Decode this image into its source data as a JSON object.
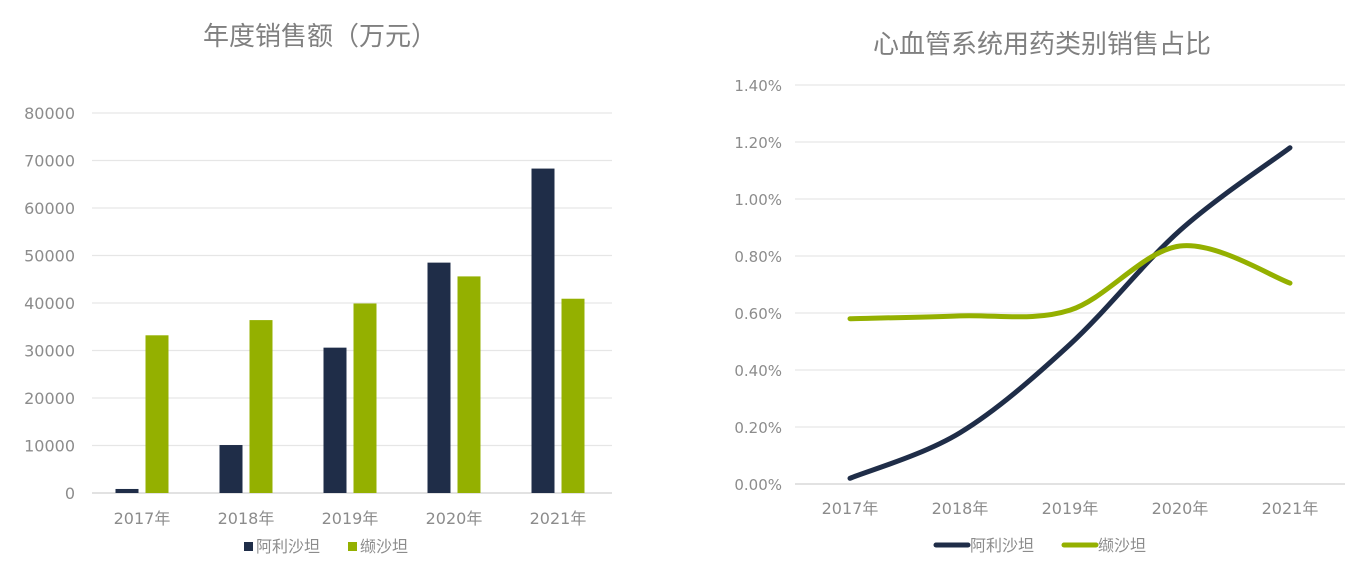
{
  "chart_data": [
    {
      "type": "bar",
      "title": "年度销售额（万元）",
      "categories": [
        "2017年",
        "2018年",
        "2019年",
        "2020年",
        "2021年"
      ],
      "series": [
        {
          "name": "阿利沙坦",
          "color": "#1f2d48",
          "values": [
            850,
            10100,
            30600,
            48500,
            68300
          ]
        },
        {
          "name": "缬沙坦",
          "color": "#94b000",
          "values": [
            33200,
            36400,
            39900,
            45600,
            40900
          ]
        }
      ],
      "yticks": [
        "0",
        "10000",
        "20000",
        "30000",
        "40000",
        "50000",
        "60000",
        "70000",
        "80000"
      ],
      "ylim": [
        0,
        80000
      ],
      "grid": true,
      "legend": "bottom"
    },
    {
      "type": "line",
      "title": "心血管系统用药类别销售占比",
      "categories": [
        "2017年",
        "2018年",
        "2019年",
        "2020年",
        "2021年"
      ],
      "series": [
        {
          "name": "阿利沙坦",
          "color": "#1f2d48",
          "values": [
            0.02,
            0.18,
            0.49,
            0.89,
            1.18
          ]
        },
        {
          "name": "缬沙坦",
          "color": "#94b000",
          "values": [
            0.58,
            0.59,
            0.61,
            0.835,
            0.705
          ]
        }
      ],
      "yticks": [
        "0.00%",
        "0.20%",
        "0.40%",
        "0.60%",
        "0.80%",
        "1.00%",
        "1.20%",
        "1.40%"
      ],
      "ylim": [
        0,
        1.4
      ],
      "grid": true,
      "smooth": true,
      "legend": "bottom"
    }
  ]
}
